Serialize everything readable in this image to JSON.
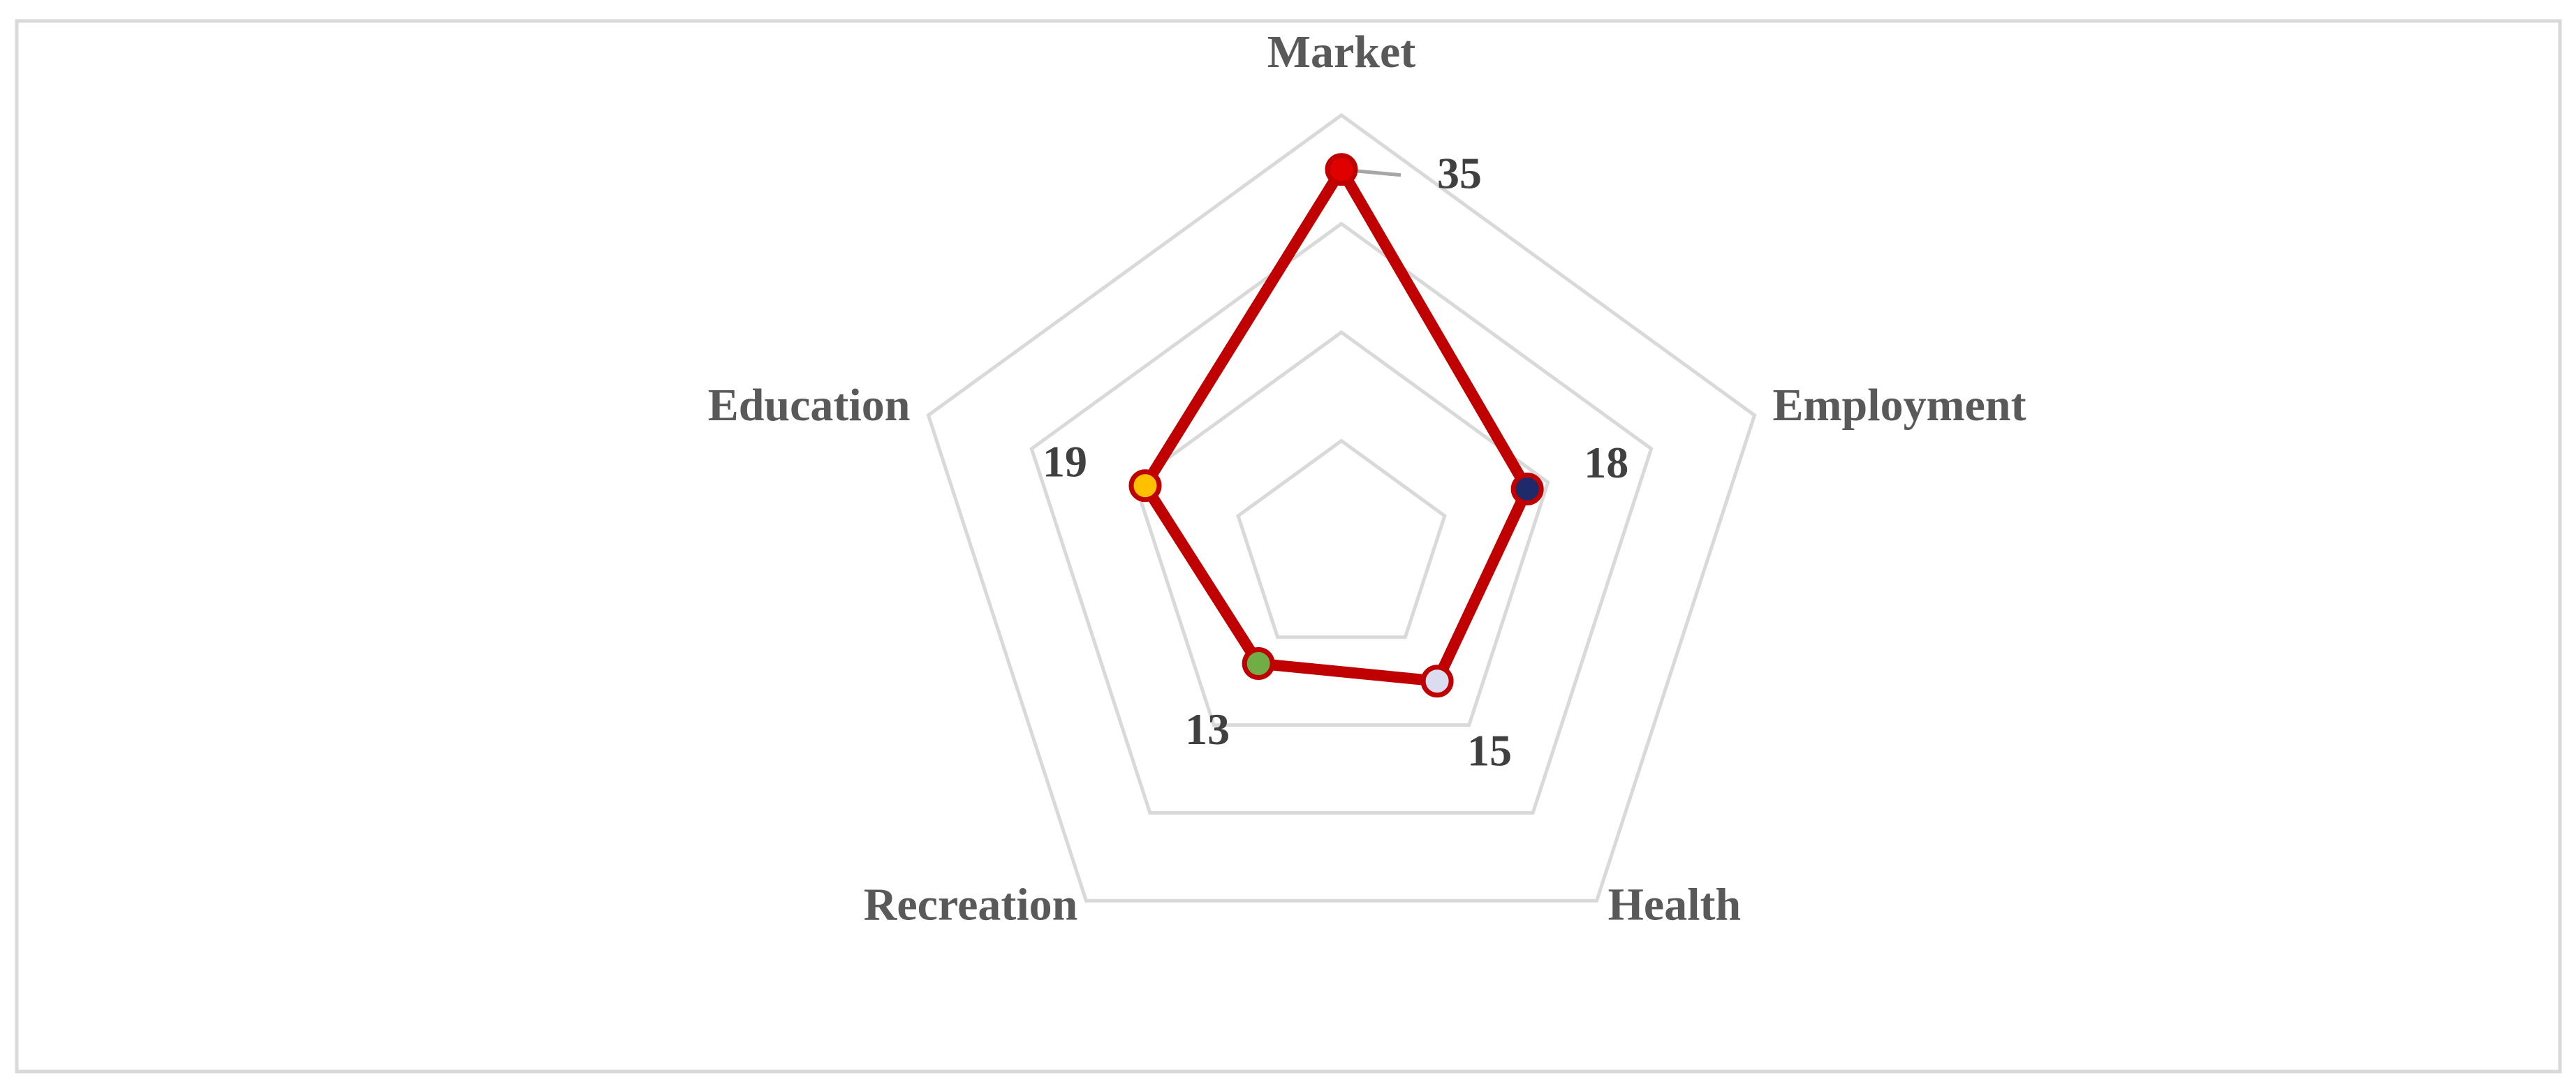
{
  "chart_data": {
    "type": "radar",
    "categories": [
      "Market",
      "Employment",
      "Health",
      "Recreation",
      "Education"
    ],
    "values": [
      35,
      18,
      15,
      13,
      19
    ],
    "color": "#c00000",
    "point_colors": [
      "#e00000",
      "#1f2a6b",
      "#dcdcf0",
      "#70ad47",
      "#ffc000"
    ],
    "ylim": [
      0,
      40
    ],
    "yticks": [
      0,
      10,
      20,
      30,
      40
    ],
    "grid": true
  }
}
